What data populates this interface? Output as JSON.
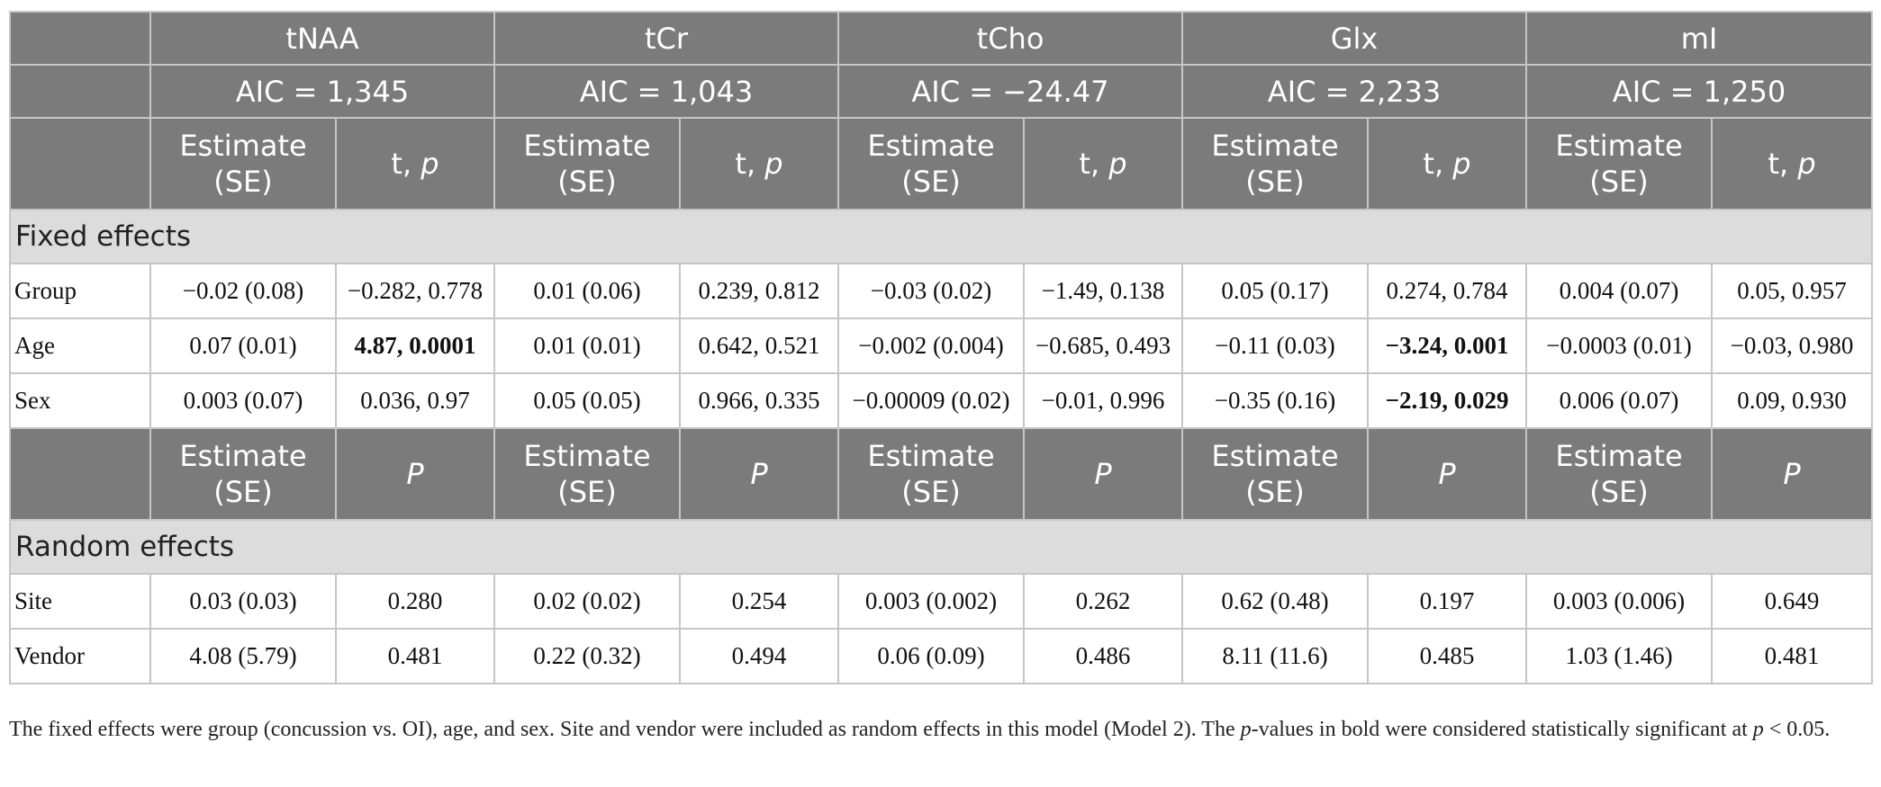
{
  "header": {
    "metabolites": [
      {
        "name": "tNAA",
        "aic": "AIC = 1,345"
      },
      {
        "name": "tCr",
        "aic": "AIC = 1,043"
      },
      {
        "name": "tCho",
        "aic": "AIC = −24.47"
      },
      {
        "name": "Glx",
        "aic": "AIC = 2,233"
      },
      {
        "name": "mI",
        "aic": "AIC = 1,250"
      }
    ],
    "col_estimate_a": "Estimate",
    "col_estimate_b": "(SE)",
    "col_t": "t, ",
    "col_p_italic": "p",
    "col_P": "P"
  },
  "fixed": {
    "title": "Fixed effects",
    "rows": [
      {
        "label": "Group",
        "cells": [
          {
            "v": "−0.02 (0.08)"
          },
          {
            "v": "−0.282, 0.778"
          },
          {
            "v": "0.01 (0.06)"
          },
          {
            "v": "0.239, 0.812"
          },
          {
            "v": "−0.03 (0.02)"
          },
          {
            "v": "−1.49, 0.138"
          },
          {
            "v": "0.05 (0.17)"
          },
          {
            "v": "0.274, 0.784"
          },
          {
            "v": "0.004 (0.07)"
          },
          {
            "v": "0.05, 0.957"
          }
        ]
      },
      {
        "label": "Age",
        "cells": [
          {
            "v": "0.07 (0.01)"
          },
          {
            "v": "4.87, 0.0001",
            "b": true
          },
          {
            "v": "0.01 (0.01)"
          },
          {
            "v": "0.642, 0.521"
          },
          {
            "v": "−0.002 (0.004)"
          },
          {
            "v": "−0.685, 0.493"
          },
          {
            "v": "−0.11 (0.03)"
          },
          {
            "v": "−3.24, 0.001",
            "b": true
          },
          {
            "v": "−0.0003 (0.01)"
          },
          {
            "v": "−0.03, 0.980"
          }
        ]
      },
      {
        "label": "Sex",
        "cells": [
          {
            "v": "0.003 (0.07)"
          },
          {
            "v": "0.036, 0.97"
          },
          {
            "v": "0.05 (0.05)"
          },
          {
            "v": "0.966, 0.335"
          },
          {
            "v": "−0.00009 (0.02)"
          },
          {
            "v": "−0.01, 0.996"
          },
          {
            "v": "−0.35 (0.16)"
          },
          {
            "v": "−2.19, 0.029",
            "b": true
          },
          {
            "v": "0.006 (0.07)"
          },
          {
            "v": "0.09, 0.930"
          }
        ]
      }
    ]
  },
  "random": {
    "title": "Random effects",
    "rows": [
      {
        "label": "Site",
        "cells": [
          {
            "v": "0.03 (0.03)"
          },
          {
            "v": "0.280"
          },
          {
            "v": "0.02 (0.02)"
          },
          {
            "v": "0.254"
          },
          {
            "v": "0.003 (0.002)"
          },
          {
            "v": "0.262"
          },
          {
            "v": "0.62 (0.48)"
          },
          {
            "v": "0.197"
          },
          {
            "v": "0.003 (0.006)"
          },
          {
            "v": "0.649"
          }
        ]
      },
      {
        "label": "Vendor",
        "cells": [
          {
            "v": "4.08 (5.79)"
          },
          {
            "v": "0.481"
          },
          {
            "v": "0.22 (0.32)"
          },
          {
            "v": "0.494"
          },
          {
            "v": "0.06 (0.09)"
          },
          {
            "v": "0.486"
          },
          {
            "v": "8.11 (11.6)"
          },
          {
            "v": "0.485"
          },
          {
            "v": "1.03 (1.46)"
          },
          {
            "v": "0.481"
          }
        ]
      }
    ]
  },
  "caption": {
    "part1": "The fixed effects were group (concussion vs. OI), age, and sex. Site and vendor were included as random effects in this model (Model 2). The ",
    "p1": "p",
    "part2": "-values in bold were considered statistically significant at ",
    "p2": "p",
    "part3": " < 0.05."
  }
}
